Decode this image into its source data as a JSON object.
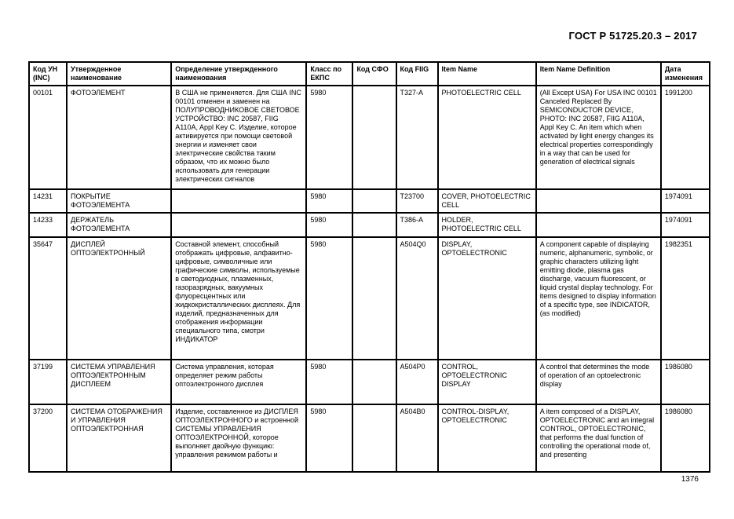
{
  "page": {
    "header_title": "ГОСТ Р 51725.20.3 – 2017",
    "page_number": "1376"
  },
  "table": {
    "columns": [
      "Код УН (INC)",
      "Утвержденное наименование",
      "Определение утвержденного наименования",
      "Класс по ЕКПС",
      "Код СФО",
      "Код FIIG",
      "Item Name",
      "Item Name Definition",
      "Дата изменения"
    ],
    "rows": [
      {
        "inc": "00101",
        "approved_name": "ФОТОЭЛЕМЕНТ",
        "approved_definition": "В США не применяется. Для США INC 00101 отменен и заменен на ПОЛУПРОВОДНИКОВОЕ СВЕТОВОЕ УСТРОЙСТВО: INC 20587, FIIG A110A, Appl Key C. Изделие, которое активируется при помощи световой энергии и изменяет свои электрические свойства таким образом, что их можно было использовать для генерации электрических сигналов",
        "ekps_class": "5980",
        "sfo_code": "",
        "fiig_code": "T327-A",
        "item_name": "PHOTOELECTRIC CELL",
        "item_name_definition": "(All Except USA) For USA INC 00101 Canceled Replaced By SEMICONDUCTOR DEVICE, PHOTO: INC 20587, FIIG A110A, Appl Key C. An item which when activated by light energy changes its electrical properties correspondingly in a way that can be used for generation of electrical signals",
        "change_date": "1991200"
      },
      {
        "inc": "14231",
        "approved_name": "ПОКРЫТИЕ ФОТОЭЛЕМЕНТА",
        "approved_definition": "",
        "ekps_class": "5980",
        "sfo_code": "",
        "fiig_code": "T23700",
        "item_name": "COVER, PHOTOELECTRIC CELL",
        "item_name_definition": "",
        "change_date": "1974091"
      },
      {
        "inc": "14233",
        "approved_name": "ДЕРЖАТЕЛЬ ФОТОЭЛЕМЕНТА",
        "approved_definition": "",
        "ekps_class": "5980",
        "sfo_code": "",
        "fiig_code": "T386-A",
        "item_name": "HOLDER, PHOTOELECTRIC CELL",
        "item_name_definition": "",
        "change_date": "1974091"
      },
      {
        "inc": "35647",
        "approved_name": "ДИСПЛЕЙ ОПТОЭЛЕКТРОННЫЙ",
        "approved_definition": "Составной элемент, способный отображать цифровые, алфавитно-цифровые, символичные или графические символы, используемые в светодиодных, плазменных, газоразрядных, вакуумных флуоресцентных или жидкокристаллических дисплеях. Для изделий, предназначенных для отображения информации специального типа, смотри ИНДИКАТОР",
        "ekps_class": "5980",
        "sfo_code": "",
        "fiig_code": "A504Q0",
        "item_name": "DISPLAY, OPTOELECTRONIC",
        "item_name_definition": "A component capable of displaying numeric, alphanumeric, symbolic, or graphic characters utilizing light emitting diode, plasma gas discharge, vacuum fluorescent, or liquid crystal display technology. For items designed to display information of a specific type, see INDICATOR, (as modified)",
        "change_date": "1982351"
      },
      {
        "inc": "37199",
        "approved_name": "СИСТЕМА УПРАВЛЕНИЯ ОПТОЭЛЕКТРОННЫМ ДИСПЛЕЕМ",
        "approved_definition": "Система управления, которая определяет режим работы оптоэлектронного дисплея",
        "ekps_class": "5980",
        "sfo_code": "",
        "fiig_code": "A504P0",
        "item_name": "CONTROL, OPTOELECTRONIC DISPLAY",
        "item_name_definition": "A control that determines the mode of operation of an optoelectronic display",
        "change_date": "1986080"
      },
      {
        "inc": "37200",
        "approved_name": "СИСТЕМА ОТОБРАЖЕНИЯ И УПРАВЛЕНИЯ ОПТОЭЛЕКТРОННАЯ",
        "approved_definition": "Изделие, составленное из ДИСПЛЕЯ ОПТОЭЛЕКТРОННОГО и встроенной СИСТЕМЫ УПРАВЛЕНИЯ ОПТОЭЛЕКТРОННОЙ, которое выполняет двойную функцию: управления режимом работы и",
        "ekps_class": "5980",
        "sfo_code": "",
        "fiig_code": "A504B0",
        "item_name": "CONTROL-DISPLAY, OPTOELECTRONIC",
        "item_name_definition": "A item composed of a DISPLAY, OPTOELECTRONIC and an integral CONTROL, OPTOELECTRONIC, that performs the dual function of controlling the operational mode of, and presenting",
        "change_date": "1986080"
      }
    ]
  }
}
